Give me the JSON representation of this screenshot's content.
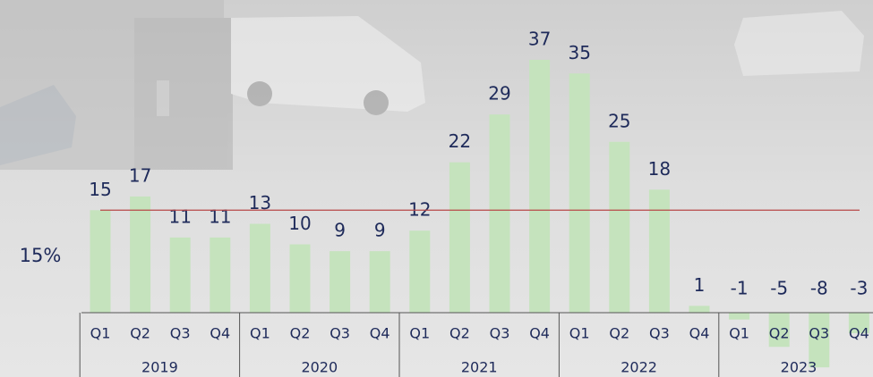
{
  "chart_data": {
    "type": "bar",
    "categories": [
      "Q1",
      "Q2",
      "Q3",
      "Q4",
      "Q1",
      "Q2",
      "Q3",
      "Q4",
      "Q1",
      "Q2",
      "Q3",
      "Q4",
      "Q1",
      "Q2",
      "Q3",
      "Q4",
      "Q1",
      "Q2",
      "Q3",
      "Q4"
    ],
    "years": [
      "2019",
      "2020",
      "2021",
      "2022",
      "2023"
    ],
    "values": [
      15,
      17,
      11,
      11,
      13,
      10,
      9,
      9,
      12,
      22,
      29,
      37,
      35,
      25,
      18,
      1,
      -1,
      -5,
      -8,
      -3
    ],
    "color": "#c5e3bd",
    "reference_line": {
      "value": 15,
      "label": "15%",
      "color": "#b84848"
    }
  }
}
